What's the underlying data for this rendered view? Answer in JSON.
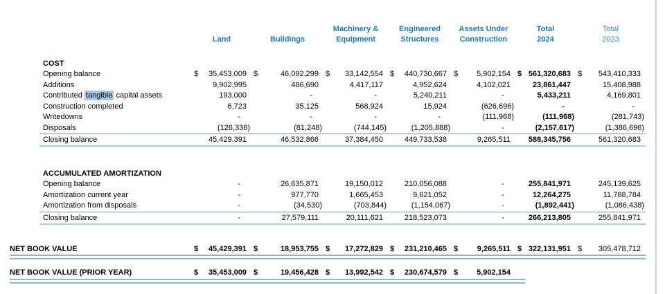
{
  "colors": {
    "header_blue": "#1878b6",
    "header_blue_muted": "#2e86ba",
    "rule_dark": "#7d93a8",
    "rule_light": "#a9cbde",
    "double_rule": "#8cb6d0",
    "highlight": "#a9c7e2",
    "page_edge": "#d0d0d0",
    "text": "#000000"
  },
  "columns": [
    {
      "line1": "",
      "line2": "Land"
    },
    {
      "line1": "",
      "line2": "Buildings"
    },
    {
      "line1": "Machinery &",
      "line2": "Equipment"
    },
    {
      "line1": "Engineered",
      "line2": "Structures"
    },
    {
      "line1": "Assets Under",
      "line2": "Construction"
    },
    {
      "line1": "Total",
      "line2": "2024"
    },
    {
      "line1": "Total",
      "line2": "2023",
      "muted": true
    }
  ],
  "sections": [
    {
      "title": "COST",
      "rows": [
        {
          "label": "Opening balance",
          "dollars": true,
          "values": [
            "35,453,009",
            "46,092,299",
            "33,142,554",
            "440,730,667",
            "5,902,154",
            "561,320,683",
            "543,410,333"
          ]
        },
        {
          "label": "Additions",
          "values": [
            "9,902,995",
            "486,690",
            "4,417,117",
            "4,952,624",
            "4,102,021",
            "23,861,447",
            "15,408,988"
          ]
        },
        {
          "label": "Contributed tangible capital assets",
          "label_parts": {
            "pre": "Contributed ",
            "highlight": "tangible",
            "post": " capital assets"
          },
          "values": [
            "193,000",
            "-",
            "-",
            "5,240,211",
            "-",
            "5,433,211",
            "4,169,801"
          ]
        },
        {
          "label": "Construction completed",
          "values": [
            "6,723",
            "35,125",
            "568,924",
            "15,924",
            "(626,696)",
            "-",
            "-"
          ]
        },
        {
          "label": "Writedowns",
          "values": [
            "-",
            "-",
            "-",
            "-",
            "(111,968)",
            "(111,968)",
            "(281,743)"
          ]
        },
        {
          "label": "Disposals",
          "values": [
            "(126,336)",
            "(81,248)",
            "(744,145)",
            "(1,205,888)",
            "-",
            "(2,157,617)",
            "(1,386,696)"
          ]
        },
        {
          "label": "Closing balance",
          "closing": true,
          "values": [
            "45,429,391",
            "46,532,866",
            "37,384,450",
            "449,733,538",
            "9,265,511",
            "588,345,756",
            "561,320,683"
          ]
        }
      ]
    },
    {
      "title": "ACCUMULATED AMORTIZATION",
      "rows": [
        {
          "label": "Opening balance",
          "values": [
            "-",
            "26,635,871",
            "19,150,012",
            "210,056,088",
            "-",
            "255,841,971",
            "245,139,625"
          ]
        },
        {
          "label": "Amortization current year",
          "values": [
            "-",
            "977,770",
            "1,665,453",
            "9,621,052",
            "-",
            "12,264,275",
            "11,788,784"
          ]
        },
        {
          "label": "Amortization from disposals",
          "values": [
            "-",
            "(34,530)",
            "(703,844)",
            "(1,154,067)",
            "-",
            "(1,892,441)",
            "(1,086,438)"
          ]
        },
        {
          "label": "Closing balance",
          "closing": true,
          "values": [
            "-",
            "27,579,111",
            "20,111,621",
            "218,523,073",
            "-",
            "266,213,805",
            "255,841,971"
          ]
        }
      ]
    }
  ],
  "summary_rows": [
    {
      "label": "NET BOOK VALUE",
      "dollars": true,
      "bold": true,
      "underline": "full",
      "values": [
        "45,429,391",
        "18,953,755",
        "17,272,829",
        "231,210,465",
        "9,265,511",
        "322,131,951",
        "305,478,712"
      ]
    },
    {
      "label": "NET BOOK VALUE (PRIOR YEAR)",
      "dollars": true,
      "bold": true,
      "underline": "partial",
      "values": [
        "35,453,009",
        "19,456,428",
        "13,992,542",
        "230,674,579",
        "5,902,154",
        "",
        ""
      ]
    }
  ]
}
